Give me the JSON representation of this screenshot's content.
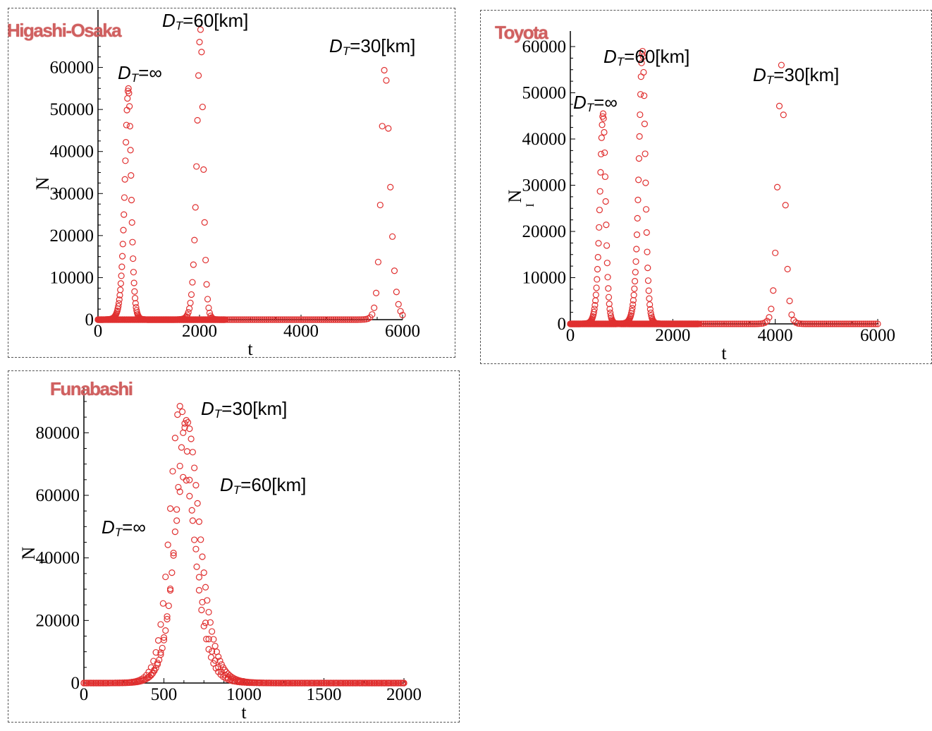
{
  "chart_data": [
    {
      "type": "scatter",
      "city": "Higashi-Osaka",
      "xlabel": "t",
      "ylabel": "N",
      "ylabel_sub": "I",
      "xlim": [
        0,
        6000
      ],
      "ylim": [
        0,
        70000
      ],
      "xticks": [
        0,
        2000,
        4000,
        6000
      ],
      "yticks": [
        0,
        10000,
        20000,
        30000,
        40000,
        50000,
        60000
      ],
      "marker_color": "#e03030",
      "annotations": [
        {
          "sym": "D",
          "sub": "T",
          "text": "=60[km]"
        },
        {
          "sym": "D",
          "sub": "T",
          "text": "=30[km]"
        },
        {
          "sym": "D",
          "sub": "T",
          "text": "=∞"
        }
      ],
      "series": [
        {
          "dt": 10,
          "t_end": 2500,
          "peaks": [
            {
              "t": 600,
              "amp": 55000,
              "rise": 95,
              "fall": 70
            }
          ]
        },
        {
          "dt": 20,
          "t_end": 2500,
          "peaks": [
            {
              "t": 2020,
              "amp": 69000,
              "rise": 95,
              "fall": 70
            }
          ]
        },
        {
          "dt": 40,
          "t_end": 6000,
          "peaks": [
            {
              "t": 5650,
              "amp": 60000,
              "rise": 95,
              "fall": 130
            }
          ]
        }
      ]
    },
    {
      "type": "scatter",
      "city": "Toyota",
      "xlabel": "t",
      "ylabel": "N",
      "ylabel_sub": "I",
      "xlim": [
        0,
        6000
      ],
      "ylim": [
        0,
        60000
      ],
      "xticks": [
        0,
        2000,
        4000,
        6000
      ],
      "yticks": [
        0,
        10000,
        20000,
        30000,
        40000,
        50000,
        60000
      ],
      "marker_color": "#e03030",
      "annotations": [
        {
          "sym": "D",
          "sub": "T",
          "text": "=60[km]"
        },
        {
          "sym": "D",
          "sub": "T",
          "text": "=30[km]"
        },
        {
          "sym": "D",
          "sub": "T",
          "text": "=∞"
        }
      ],
      "series": [
        {
          "dt": 10,
          "t_end": 2500,
          "peaks": [
            {
              "t": 640,
              "amp": 45500,
              "rise": 85,
              "fall": 65
            }
          ]
        },
        {
          "dt": 10,
          "t_end": 2500,
          "peaks": [
            {
              "t": 1410,
              "amp": 59000,
              "rise": 95,
              "fall": 70
            }
          ]
        },
        {
          "dt": 40,
          "t_end": 6000,
          "peaks": [
            {
              "t": 4120,
              "amp": 56000,
              "rise": 95,
              "fall": 85
            }
          ]
        }
      ]
    },
    {
      "type": "scatter",
      "city": "Funabashi",
      "xlabel": "t",
      "ylabel": "N",
      "ylabel_sub": "I",
      "xlim": [
        0,
        2000
      ],
      "ylim": [
        0,
        90000
      ],
      "xticks": [
        0,
        500,
        1000,
        1500,
        2000
      ],
      "yticks": [
        0,
        20000,
        40000,
        60000,
        80000
      ],
      "marker_color": "#e03030",
      "annotations": [
        {
          "sym": "D",
          "sub": "T",
          "text": "=30[km]"
        },
        {
          "sym": "D",
          "sub": "T",
          "text": "=60[km]"
        },
        {
          "sym": "D",
          "sub": "T",
          "text": "=∞"
        }
      ],
      "series": [
        {
          "dt": 10,
          "t_end": 2000,
          "peaks": [
            {
              "t": 640,
              "amp": 84000,
              "rise": 90,
              "fall": 110
            }
          ]
        },
        {
          "dt": 15,
          "t_end": 2000,
          "peaks": [
            {
              "t": 600,
              "amp": 88500,
              "rise": 85,
              "fall": 105
            }
          ]
        },
        {
          "dt": 20,
          "t_end": 2000,
          "peaks": [
            {
              "t": 625,
              "amp": 66000,
              "rise": 90,
              "fall": 110
            }
          ]
        }
      ]
    }
  ]
}
